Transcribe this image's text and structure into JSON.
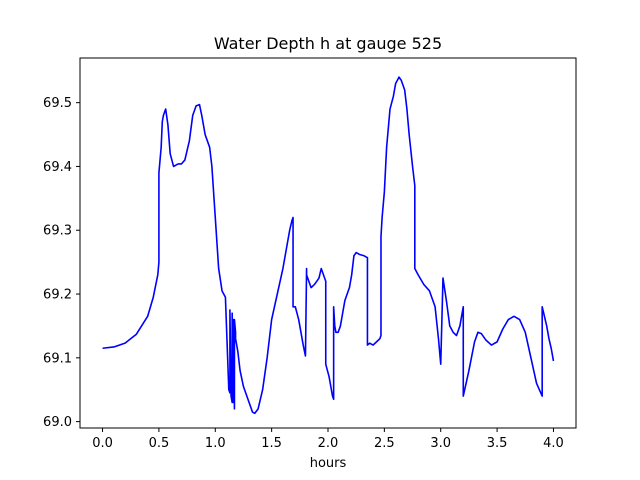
{
  "chart_data": {
    "type": "line",
    "title": "Water Depth h at gauge 525",
    "xlabel": "hours",
    "ylabel": "",
    "xlim": [
      -0.2,
      4.2
    ],
    "ylim": [
      68.99,
      69.57
    ],
    "grid": false,
    "x_ticks": [
      0.0,
      0.5,
      1.0,
      1.5,
      2.0,
      2.5,
      3.0,
      3.5,
      4.0
    ],
    "x_tick_labels": [
      "0.0",
      "0.5",
      "1.0",
      "1.5",
      "2.0",
      "2.5",
      "3.0",
      "3.5",
      "4.0"
    ],
    "y_ticks": [
      69.0,
      69.1,
      69.2,
      69.3,
      69.4,
      69.5
    ],
    "y_tick_labels": [
      "69.0",
      "69.1",
      "69.2",
      "69.3",
      "69.4",
      "69.5"
    ],
    "series": [
      {
        "color": "#0000ff",
        "x": [
          0.0,
          0.1,
          0.2,
          0.3,
          0.4,
          0.45,
          0.49,
          0.5,
          0.5,
          0.52,
          0.53,
          0.54,
          0.56,
          0.58,
          0.6,
          0.63,
          0.67,
          0.7,
          0.73,
          0.77,
          0.8,
          0.83,
          0.86,
          0.88,
          0.91,
          0.93,
          0.95,
          0.97,
          1.0,
          1.03,
          1.06,
          1.09,
          1.12,
          1.13,
          1.13,
          1.14,
          1.15,
          1.15,
          1.16,
          1.16,
          1.17,
          1.17,
          1.18,
          1.18,
          1.2,
          1.22,
          1.25,
          1.28,
          1.3,
          1.33,
          1.35,
          1.38,
          1.42,
          1.46,
          1.5,
          1.55,
          1.6,
          1.63,
          1.66,
          1.68,
          1.69,
          1.69,
          1.71,
          1.74,
          1.78,
          1.8,
          1.81,
          1.81,
          1.83,
          1.85,
          1.88,
          1.9,
          1.92,
          1.94,
          1.96,
          1.98,
          1.98,
          2.01,
          2.04,
          2.05,
          2.05,
          2.06,
          2.07,
          2.09,
          2.11,
          2.13,
          2.15,
          2.17,
          2.19,
          2.21,
          2.23,
          2.25,
          2.28,
          2.32,
          2.35,
          2.35,
          2.37,
          2.4,
          2.43,
          2.46,
          2.47,
          2.47,
          2.48,
          2.5,
          2.52,
          2.55,
          2.58,
          2.6,
          2.63,
          2.65,
          2.68,
          2.7,
          2.72,
          2.75,
          2.77,
          2.77,
          2.8,
          2.85,
          2.9,
          2.95,
          2.98,
          3.0,
          3.02,
          3.05,
          3.08,
          3.11,
          3.14,
          3.17,
          3.2,
          3.2,
          3.25,
          3.3,
          3.33,
          3.36,
          3.4,
          3.45,
          3.5,
          3.55,
          3.6,
          3.65,
          3.7,
          3.75,
          3.8,
          3.85,
          3.9,
          3.9,
          3.92,
          3.94,
          3.96,
          3.98,
          4.0
        ],
        "y": [
          69.115,
          69.117,
          69.123,
          69.137,
          69.165,
          69.195,
          69.23,
          69.25,
          69.39,
          69.43,
          69.47,
          69.48,
          69.49,
          69.465,
          69.42,
          69.4,
          69.404,
          69.404,
          69.41,
          69.44,
          69.48,
          69.495,
          69.497,
          69.48,
          69.45,
          69.44,
          69.43,
          69.4,
          69.32,
          69.24,
          69.205,
          69.195,
          69.05,
          69.045,
          69.175,
          69.04,
          69.03,
          69.17,
          69.03,
          69.16,
          69.02,
          69.16,
          69.14,
          69.13,
          69.11,
          69.08,
          69.055,
          69.04,
          69.03,
          69.015,
          69.013,
          69.02,
          69.05,
          69.1,
          69.16,
          69.2,
          69.24,
          69.27,
          69.3,
          69.315,
          69.32,
          69.18,
          69.18,
          69.16,
          69.12,
          69.103,
          69.24,
          69.23,
          69.22,
          69.21,
          69.215,
          69.22,
          69.225,
          69.24,
          69.23,
          69.22,
          69.09,
          69.07,
          69.04,
          69.035,
          69.18,
          69.15,
          69.14,
          69.14,
          69.15,
          69.17,
          69.19,
          69.2,
          69.21,
          69.23,
          69.26,
          69.265,
          69.262,
          69.26,
          69.257,
          69.12,
          69.123,
          69.12,
          69.125,
          69.13,
          69.135,
          69.29,
          69.32,
          69.36,
          69.43,
          69.49,
          69.51,
          69.53,
          69.54,
          69.535,
          69.52,
          69.49,
          69.45,
          69.4,
          69.37,
          69.24,
          69.23,
          69.215,
          69.205,
          69.18,
          69.13,
          69.09,
          69.225,
          69.19,
          69.15,
          69.14,
          69.135,
          69.15,
          69.18,
          69.04,
          69.08,
          69.125,
          69.14,
          69.138,
          69.128,
          69.12,
          69.125,
          69.145,
          69.16,
          69.165,
          69.16,
          69.14,
          69.1,
          69.06,
          69.04,
          69.18,
          69.165,
          69.15,
          69.13,
          69.115,
          69.095
        ]
      }
    ]
  }
}
